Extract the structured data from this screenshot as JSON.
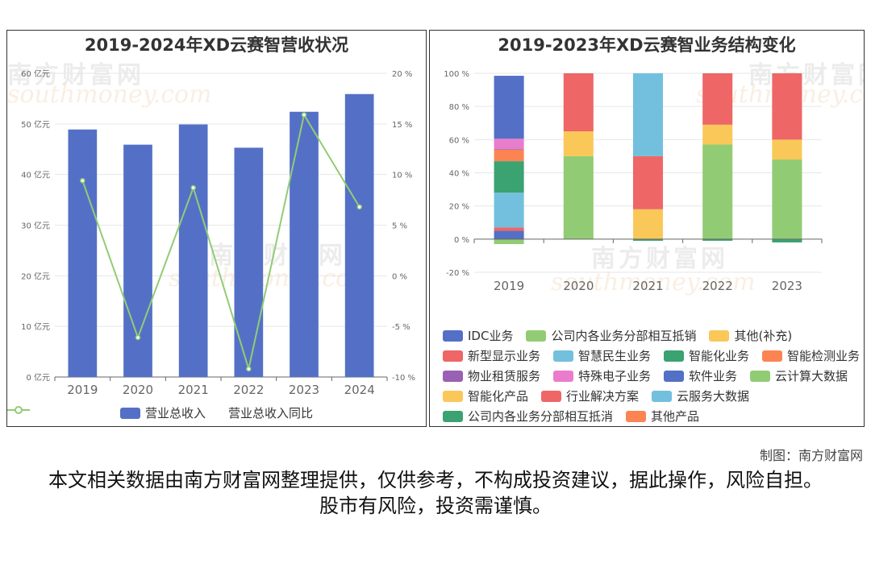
{
  "left_chart": {
    "title": "2019-2024年XD云赛智营收状况",
    "watermark": "南方财富网",
    "watermark_sub": "southmoney.com",
    "chart_data": {
      "type": "bar",
      "categories": [
        "2019",
        "2020",
        "2021",
        "2022",
        "2023",
        "2024"
      ],
      "series": [
        {
          "name": "营业总收入",
          "type": "bar",
          "axis": "left",
          "unit": "亿元",
          "values": [
            48.9,
            45.9,
            49.9,
            45.3,
            52.4,
            55.9
          ]
        },
        {
          "name": "营业总收入同比",
          "type": "line",
          "axis": "right",
          "unit": "%",
          "values": [
            9.4,
            -6.1,
            8.7,
            -9.2,
            15.9,
            6.8
          ]
        }
      ],
      "ylim_left": [
        0,
        60
      ],
      "yticks_left": [
        "0 亿元",
        "10 亿元",
        "20 亿元",
        "30 亿元",
        "40 亿元",
        "50 亿元",
        "60 亿元"
      ],
      "ylim_right": [
        -10,
        20
      ],
      "yticks_right": [
        "-10 %",
        "-5 %",
        "0 %",
        "5 %",
        "10 %",
        "15 %",
        "20 %"
      ],
      "legend_position": "bottom",
      "colors": {
        "bar": "#5470c6",
        "line": "#91cc75"
      }
    }
  },
  "right_chart": {
    "title": "2019-2023年XD云赛智业务结构变化",
    "watermark": "南方财富网",
    "watermark_sub": "southmoney.com",
    "chart_data": {
      "type": "bar",
      "stacked": true,
      "categories": [
        "2019",
        "2020",
        "2021",
        "2022",
        "2023"
      ],
      "ylim": [
        -20,
        100
      ],
      "yticks": [
        "-20 %",
        "0 %",
        "20 %",
        "40 %",
        "60 %",
        "80 %",
        "100 %"
      ],
      "legend_position": "bottom",
      "series": [
        {
          "name": "IDC业务",
          "color": "#5470c6",
          "values": [
            5,
            0,
            0,
            0,
            0
          ]
        },
        {
          "name": "公司内各业务分部相互抵销",
          "color": "#91cc75",
          "values": [
            -3,
            0,
            0,
            0,
            0
          ]
        },
        {
          "name": "其他(补充)",
          "color": "#fac858",
          "values": [
            0,
            0,
            0,
            0,
            0
          ]
        },
        {
          "name": "新型显示业务",
          "color": "#ee6666",
          "values": [
            2,
            0,
            0,
            0,
            0
          ]
        },
        {
          "name": "智慧民生业务",
          "color": "#73c0de",
          "values": [
            21,
            0,
            0,
            0,
            0
          ]
        },
        {
          "name": "智能化业务",
          "color": "#3ba272",
          "values": [
            19,
            0,
            0,
            0,
            0
          ]
        },
        {
          "name": "智能检测业务",
          "color": "#fc8452",
          "values": [
            7,
            0,
            0,
            0,
            0
          ]
        },
        {
          "name": "物业租赁服务",
          "color": "#9a60b4",
          "values": [
            0.5,
            0,
            0,
            0,
            0
          ]
        },
        {
          "name": "特殊电子业务",
          "color": "#ea7ccc",
          "values": [
            6,
            0,
            0,
            0,
            0
          ]
        },
        {
          "name": "软件业务",
          "color": "#5470c6",
          "values": [
            38,
            0,
            0,
            0,
            0
          ]
        },
        {
          "name": "云计算大数据",
          "color": "#91cc75",
          "values": [
            0,
            50,
            0,
            57,
            48
          ]
        },
        {
          "name": "智能化产品",
          "color": "#fac858",
          "values": [
            0,
            15,
            18,
            12,
            12
          ]
        },
        {
          "name": "行业解决方案",
          "color": "#ee6666",
          "values": [
            0,
            35,
            32,
            31,
            40
          ]
        },
        {
          "name": "云服务大数据",
          "color": "#73c0de",
          "values": [
            0,
            0,
            50,
            0,
            0
          ]
        },
        {
          "name": "公司内各业务分部相互抵消",
          "color": "#3ba272",
          "values": [
            0,
            0,
            -1,
            -1,
            -2
          ]
        },
        {
          "name": "其他产品",
          "color": "#fc8452",
          "values": [
            0,
            0,
            0,
            0,
            0
          ]
        }
      ]
    }
  },
  "credit": "制图：南方财富网",
  "disclaimer": "本文相关数据由南方财富网整理提供，仅供参考，不构成投资建议，据此操作，风险自担。股市有风险，投资需谨慎。"
}
